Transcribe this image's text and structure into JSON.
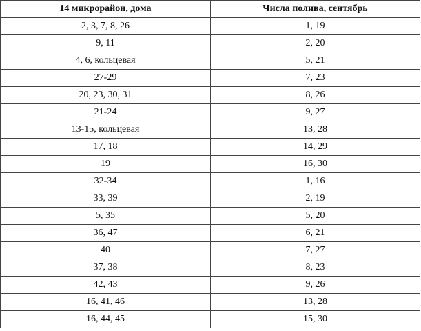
{
  "table": {
    "header": [
      "14 микрорайон, дома",
      "Числа полива, сентябрь"
    ],
    "rows": [
      [
        "2, 3, 7, 8, 26",
        "1, 19"
      ],
      [
        "9, 11",
        "2, 20"
      ],
      [
        "4, 6, кольцевая",
        "5, 21"
      ],
      [
        "27-29",
        "7, 23"
      ],
      [
        "20, 23, 30, 31",
        "8, 26"
      ],
      [
        "21-24",
        "9, 27"
      ],
      [
        "13-15, кольцевая",
        "13, 28"
      ],
      [
        "17, 18",
        "14, 29"
      ],
      [
        "19",
        "16, 30"
      ],
      [
        "32-34",
        "1, 16"
      ],
      [
        "33, 39",
        "2, 19"
      ],
      [
        "5, 35",
        "5, 20"
      ],
      [
        "36, 47",
        "6, 21"
      ],
      [
        "40",
        "7, 27"
      ],
      [
        "37, 38",
        "8, 23"
      ],
      [
        "42, 43",
        "9, 26"
      ],
      [
        "16, 41, 46",
        "13, 28"
      ],
      [
        "16, 44, 45",
        "15, 30"
      ]
    ]
  }
}
